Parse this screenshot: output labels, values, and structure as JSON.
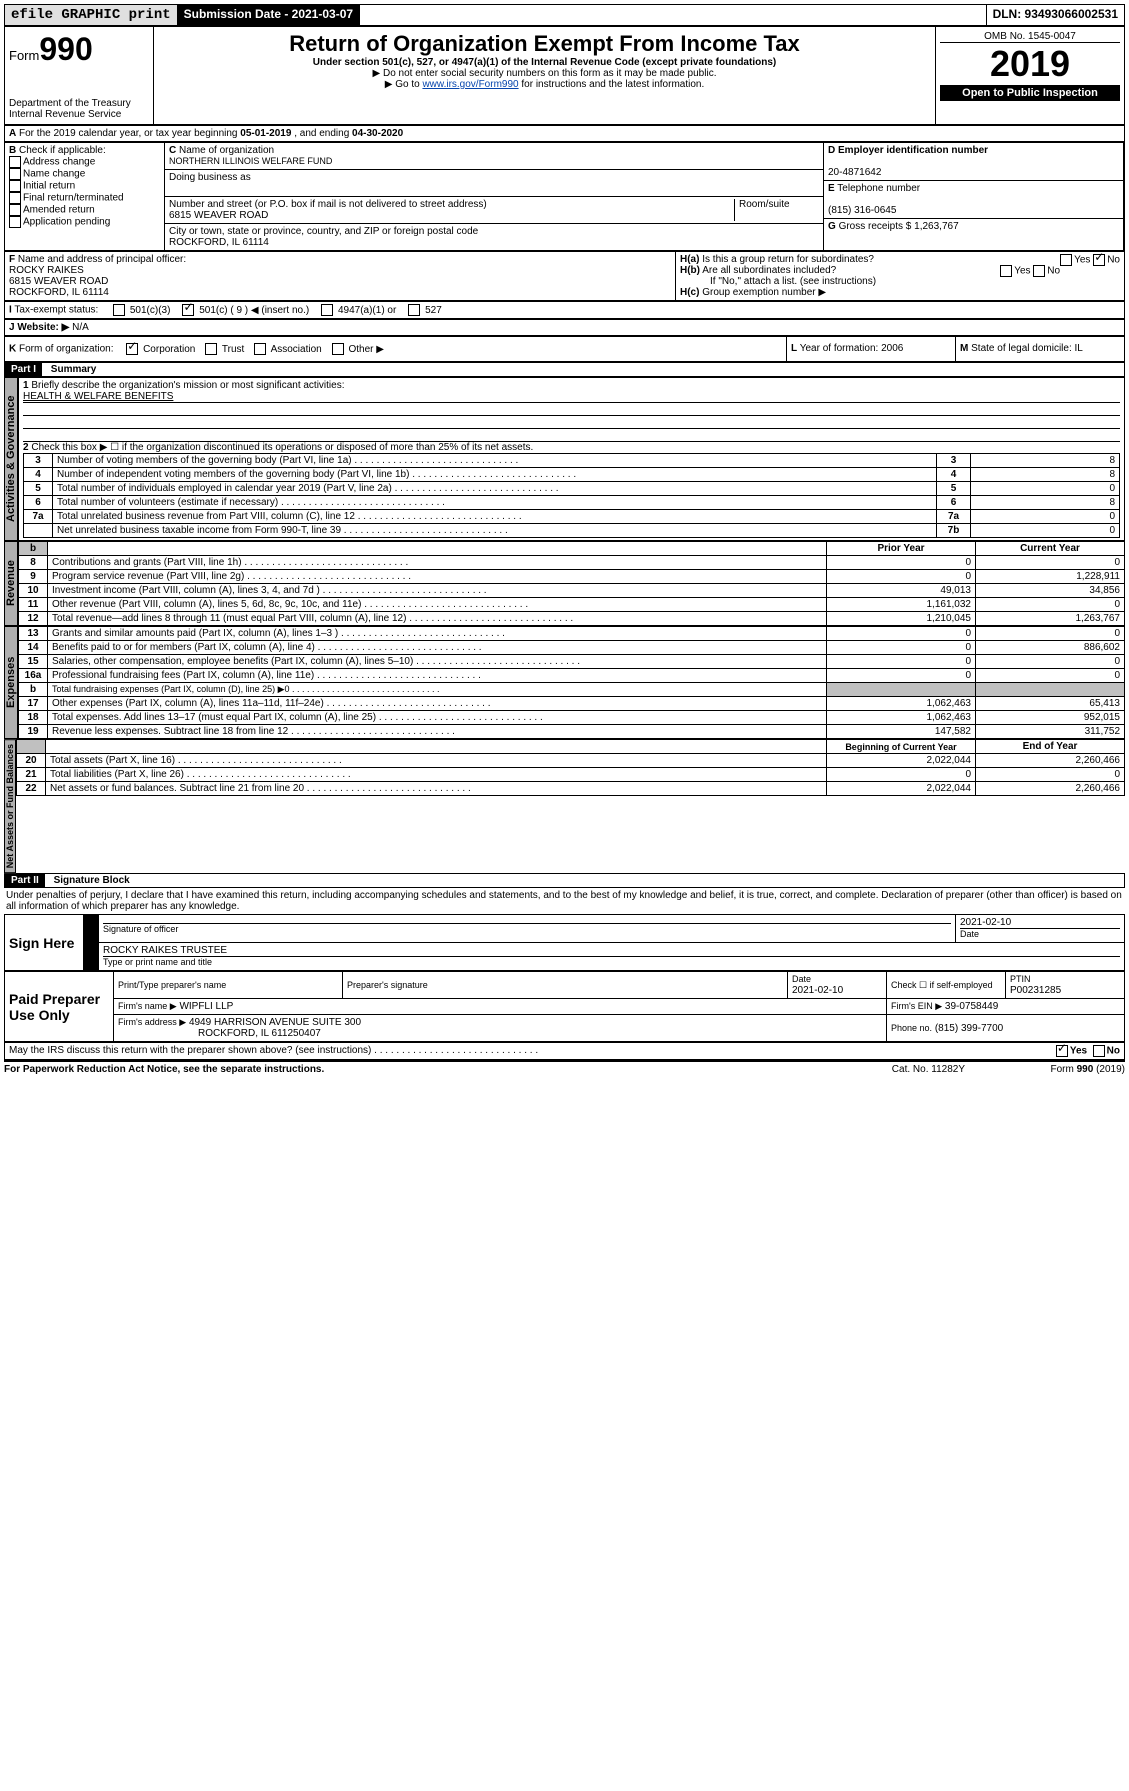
{
  "topbar": {
    "efile": "efile GRAPHIC print",
    "submission_label": "Submission Date - 2021-03-07",
    "dln": "DLN: 93493066002531"
  },
  "header": {
    "form_prefix": "Form",
    "form_number": "990",
    "dept": "Department of the Treasury",
    "irs": "Internal Revenue Service",
    "title": "Return of Organization Exempt From Income Tax",
    "subtitle": "Under section 501(c), 527, or 4947(a)(1) of the Internal Revenue Code (except private foundations)",
    "note1": "▶ Do not enter social security numbers on this form as it may be made public.",
    "note2_pre": "▶ Go to ",
    "note2_link": "www.irs.gov/Form990",
    "note2_post": " for instructions and the latest information.",
    "omb": "OMB No. 1545-0047",
    "year": "2019",
    "open": "Open to Public Inspection"
  },
  "lineA": {
    "text_pre": "For the 2019 calendar year, or tax year beginning ",
    "begin": "05-01-2019",
    "mid": " , and ending ",
    "end": "04-30-2020"
  },
  "boxB": {
    "label": "Check if applicable:",
    "items": [
      "Address change",
      "Name change",
      "Initial return",
      "Final return/terminated",
      "Amended return",
      "Application pending"
    ]
  },
  "boxC": {
    "name_label": "Name of organization",
    "name": "NORTHERN ILLINOIS WELFARE FUND",
    "dba_label": "Doing business as",
    "addr_label": "Number and street (or P.O. box if mail is not delivered to street address)",
    "room_label": "Room/suite",
    "addr": "6815 WEAVER ROAD",
    "city_label": "City or town, state or province, country, and ZIP or foreign postal code",
    "city": "ROCKFORD, IL  61114"
  },
  "boxD": {
    "label": "Employer identification number",
    "val": "20-4871642"
  },
  "boxE": {
    "label": "Telephone number",
    "val": "(815) 316-0645"
  },
  "boxG": {
    "label": "Gross receipts $",
    "val": "1,263,767"
  },
  "boxF": {
    "label": "Name and address of principal officer:",
    "name": "ROCKY RAIKES",
    "addr1": "6815 WEAVER ROAD",
    "addr2": "ROCKFORD, IL  61114"
  },
  "boxH": {
    "a": "Is this a group return for subordinates?",
    "b": "Are all subordinates included?",
    "b_note": "If \"No,\" attach a list. (see instructions)",
    "c": "Group exemption number ▶",
    "yes": "Yes",
    "no": "No"
  },
  "boxI": {
    "label": "Tax-exempt status:",
    "opts": [
      "501(c)(3)",
      "501(c) ( 9 ) ◀ (insert no.)",
      "4947(a)(1) or",
      "527"
    ]
  },
  "boxJ": {
    "label": "Website: ▶",
    "val": "N/A"
  },
  "boxK": {
    "label": "Form of organization:",
    "opts": [
      "Corporation",
      "Trust",
      "Association",
      "Other ▶"
    ]
  },
  "boxL": {
    "label": "Year of formation:",
    "val": "2006"
  },
  "boxM": {
    "label": "State of legal domicile:",
    "val": "IL"
  },
  "part1": {
    "title": "Part I",
    "sub": "Summary",
    "q1": "Briefly describe the organization's mission or most significant activities:",
    "q1_ans": "HEALTH & WELFARE BENEFITS",
    "q2": "Check this box ▶ ☐  if the organization discontinued its operations or disposed of more than 25% of its net assets.",
    "rows_gov": [
      {
        "n": "3",
        "t": "Number of voting members of the governing body (Part VI, line 1a)",
        "box": "3",
        "v": "8"
      },
      {
        "n": "4",
        "t": "Number of independent voting members of the governing body (Part VI, line 1b)",
        "box": "4",
        "v": "8"
      },
      {
        "n": "5",
        "t": "Total number of individuals employed in calendar year 2019 (Part V, line 2a)",
        "box": "5",
        "v": "0"
      },
      {
        "n": "6",
        "t": "Total number of volunteers (estimate if necessary)",
        "box": "6",
        "v": "8"
      },
      {
        "n": "7a",
        "t": "Total unrelated business revenue from Part VIII, column (C), line 12",
        "box": "7a",
        "v": "0"
      },
      {
        "n": "",
        "t": "Net unrelated business taxable income from Form 990-T, line 39",
        "box": "7b",
        "v": "0"
      }
    ],
    "col_prior": "Prior Year",
    "col_current": "Current Year",
    "rows_rev": [
      {
        "n": "8",
        "t": "Contributions and grants (Part VIII, line 1h)",
        "p": "0",
        "c": "0"
      },
      {
        "n": "9",
        "t": "Program service revenue (Part VIII, line 2g)",
        "p": "0",
        "c": "1,228,911"
      },
      {
        "n": "10",
        "t": "Investment income (Part VIII, column (A), lines 3, 4, and 7d )",
        "p": "49,013",
        "c": "34,856"
      },
      {
        "n": "11",
        "t": "Other revenue (Part VIII, column (A), lines 5, 6d, 8c, 9c, 10c, and 11e)",
        "p": "1,161,032",
        "c": "0"
      },
      {
        "n": "12",
        "t": "Total revenue—add lines 8 through 11 (must equal Part VIII, column (A), line 12)",
        "p": "1,210,045",
        "c": "1,263,767"
      }
    ],
    "rows_exp": [
      {
        "n": "13",
        "t": "Grants and similar amounts paid (Part IX, column (A), lines 1–3 )",
        "p": "0",
        "c": "0"
      },
      {
        "n": "14",
        "t": "Benefits paid to or for members (Part IX, column (A), line 4)",
        "p": "0",
        "c": "886,602"
      },
      {
        "n": "15",
        "t": "Salaries, other compensation, employee benefits (Part IX, column (A), lines 5–10)",
        "p": "0",
        "c": "0"
      },
      {
        "n": "16a",
        "t": "Professional fundraising fees (Part IX, column (A), line 11e)",
        "p": "0",
        "c": "0"
      },
      {
        "n": "b",
        "t": "Total fundraising expenses (Part IX, column (D), line 25) ▶0",
        "p": "",
        "c": "",
        "grey": true
      },
      {
        "n": "17",
        "t": "Other expenses (Part IX, column (A), lines 11a–11d, 11f–24e)",
        "p": "1,062,463",
        "c": "65,413"
      },
      {
        "n": "18",
        "t": "Total expenses. Add lines 13–17 (must equal Part IX, column (A), line 25)",
        "p": "1,062,463",
        "c": "952,015"
      },
      {
        "n": "19",
        "t": "Revenue less expenses. Subtract line 18 from line 12",
        "p": "147,582",
        "c": "311,752"
      }
    ],
    "col_begin": "Beginning of Current Year",
    "col_end": "End of Year",
    "rows_bal": [
      {
        "n": "20",
        "t": "Total assets (Part X, line 16)",
        "p": "2,022,044",
        "c": "2,260,466"
      },
      {
        "n": "21",
        "t": "Total liabilities (Part X, line 26)",
        "p": "0",
        "c": "0"
      },
      {
        "n": "22",
        "t": "Net assets or fund balances. Subtract line 21 from line 20",
        "p": "2,022,044",
        "c": "2,260,466"
      }
    ],
    "vtab_gov": "Activities & Governance",
    "vtab_rev": "Revenue",
    "vtab_exp": "Expenses",
    "vtab_bal": "Net Assets or Fund Balances"
  },
  "part2": {
    "title": "Part II",
    "sub": "Signature Block",
    "perjury": "Under penalties of perjury, I declare that I have examined this return, including accompanying schedules and statements, and to the best of my knowledge and belief, it is true, correct, and complete. Declaration of preparer (other than officer) is based on all information of which preparer has any knowledge.",
    "sign_here": "Sign Here",
    "sig_officer": "Signature of officer",
    "sig_date": "2021-02-10",
    "date_label": "Date",
    "printed": "ROCKY RAIKES  TRUSTEE",
    "printed_label": "Type or print name and title",
    "paid": "Paid Preparer Use Only",
    "prep_name_h": "Print/Type preparer's name",
    "prep_sig_h": "Preparer's signature",
    "prep_date_h": "Date",
    "prep_date": "2021-02-10",
    "prep_check": "Check ☐ if self-employed",
    "ptin_h": "PTIN",
    "ptin": "P00231285",
    "firm_name_h": "Firm's name    ▶",
    "firm_name": "WIPFLI LLP",
    "firm_ein_h": "Firm's EIN ▶",
    "firm_ein": "39-0758449",
    "firm_addr_h": "Firm's address ▶",
    "firm_addr": "4949 HARRISON AVENUE SUITE 300",
    "firm_city": "ROCKFORD, IL  611250407",
    "firm_phone_h": "Phone no.",
    "firm_phone": "(815) 399-7700",
    "discuss": "May the IRS discuss this return with the preparer shown above? (see instructions)",
    "paperwork": "For Paperwork Reduction Act Notice, see the separate instructions.",
    "catno": "Cat. No. 11282Y",
    "formno": "Form 990 (2019)"
  }
}
